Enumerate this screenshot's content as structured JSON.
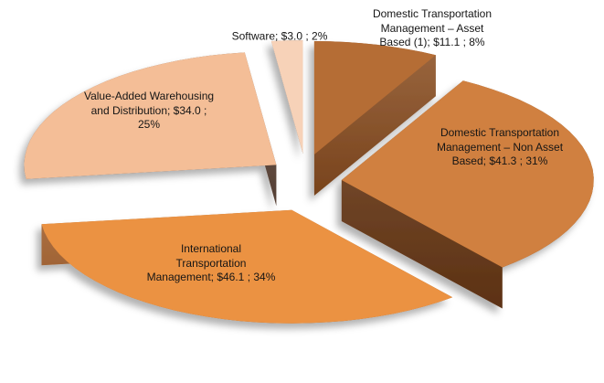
{
  "page": {
    "background_color": "#FFFFFF",
    "text_color": "#151515"
  },
  "chart_data": {
    "type": "pie",
    "variant": "3d-exploded",
    "title": "",
    "legend": "none",
    "label_format": "name; $value ; percent%",
    "slices": [
      {
        "name": "Domestic Transportation Management – Asset Based (1)",
        "value": 11.1,
        "percent": 8,
        "color_top": "#B56D36",
        "color_side": "#8B4E21",
        "label_lines": [
          "Domestic Transportation",
          "Management – Asset",
          "Based (1);  $11.1 ; 8%"
        ]
      },
      {
        "name": "Domestic Transportation Management – Non Asset Based",
        "value": 41.3,
        "percent": 31,
        "color_top": "#D0803F",
        "color_side": "#6B3916",
        "label_lines": [
          "Domestic Transportation",
          "Management – Non Asset",
          "Based;  $41.3 ; 31%"
        ]
      },
      {
        "name": "International Transportation Management",
        "value": 46.1,
        "percent": 34,
        "color_top": "#EB9243",
        "color_side": "#A05A24",
        "label_lines": [
          "International",
          "Transportation",
          "Management;  $46.1 ; 34%"
        ]
      },
      {
        "name": "Value-Added Warehousing and Distribution",
        "value": 34.0,
        "percent": 25,
        "color_top": "#F4BE97",
        "color_side": "#5E4538",
        "label_lines": [
          "Value-Added Warehousing",
          "and Distribution;   $34.0 ;",
          "25%"
        ]
      },
      {
        "name": "Software",
        "value": 3.0,
        "percent": 2,
        "color_top": "#F7D2B8",
        "color_side": "#655044",
        "label_lines": [
          "Software;  $3.0 ; 2%"
        ]
      }
    ]
  }
}
